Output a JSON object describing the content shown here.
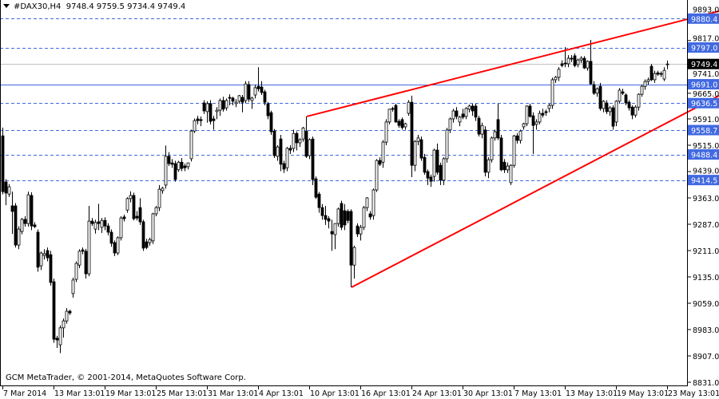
{
  "header": {
    "symbol": "#DAX30,H4",
    "ohlc_text": "9748.4 9759.5 9734.4 9749.4"
  },
  "footer": {
    "copyright": "GCM MetaTrader, © 2001-2014, MetaQuotes Software Corp."
  },
  "colors": {
    "bull_fill": "#ffffff",
    "bear_fill": "#000000",
    "candle_outline": "#000000",
    "level_line": "#4169e1",
    "level_label_bg": "#4169e1",
    "bid_line": "#c0c0c0",
    "bid_label_bg": "#000000",
    "trendline": "#ff0000"
  },
  "chart_data": {
    "type": "candlestick",
    "title": "#DAX30,H4",
    "ylim": [
      8821.8,
      9934.1
    ],
    "grid": false,
    "y_ticks": [
      "9893.0",
      "9817.0",
      "9741.0",
      "9665.0",
      "9591.0",
      "9515.0",
      "9439.0",
      "9363.0",
      "9287.0",
      "9211.0",
      "9135.0",
      "9059.0",
      "8983.0",
      "8907.0",
      "8831.0"
    ],
    "x_labels": [
      {
        "bar": 0,
        "label": "7 Mar 2014"
      },
      {
        "bar": 16,
        "label": "13 Mar 13:01"
      },
      {
        "bar": 32,
        "label": "19 Mar 13:01"
      },
      {
        "bar": 48,
        "label": "25 Mar 13:01"
      },
      {
        "bar": 64,
        "label": "31 Mar 13:01"
      },
      {
        "bar": 80,
        "label": "4 Apr 13:01"
      },
      {
        "bar": 96,
        "label": "10 Apr 13:01"
      },
      {
        "bar": 112,
        "label": "16 Apr 13:01"
      },
      {
        "bar": 128,
        "label": "24 Apr 13:01"
      },
      {
        "bar": 144,
        "label": "30 Apr 13:01"
      },
      {
        "bar": 160,
        "label": "7 May 13:01"
      },
      {
        "bar": 176,
        "label": "13 May 13:01"
      },
      {
        "bar": 192,
        "label": "19 May 13:01"
      },
      {
        "bar": 208,
        "label": "23 May 13:01"
      }
    ],
    "levels": [
      {
        "price": 9880.4,
        "label": "9880.4",
        "style": "dashed"
      },
      {
        "price": 9797.0,
        "label": "9797.0",
        "style": "dashed"
      },
      {
        "price": 9749.4,
        "label": "9749.4",
        "style": "bid"
      },
      {
        "price": 9691.0,
        "label": "9691.0",
        "style": "solid"
      },
      {
        "price": 9636.5,
        "label": "9636.5",
        "style": "dashed"
      },
      {
        "price": 9558.7,
        "label": "9558.7",
        "style": "dashed"
      },
      {
        "price": 9488.4,
        "label": "9488.4",
        "style": "dashed"
      },
      {
        "price": 9414.5,
        "label": "9414.5",
        "style": "dashed"
      }
    ],
    "trendlines": [
      {
        "start": {
          "bar": 95.25,
          "price": 9598
        },
        "end": {
          "bar": 224.25,
          "price": 9902
        }
      },
      {
        "start": {
          "bar": 109.25,
          "price": 9105
        },
        "end": {
          "bar": 224.25,
          "price": 9658
        }
      }
    ],
    "candles_ohlc": [
      [
        9542,
        9566,
        9373,
        9381
      ],
      [
        9409,
        9417,
        9342,
        9377
      ],
      [
        9374,
        9403,
        9366,
        9395
      ],
      [
        9340,
        9381,
        9259,
        9324
      ],
      [
        9340,
        9348,
        9220,
        9227
      ],
      [
        9227,
        9281,
        9215,
        9273
      ],
      [
        9266,
        9305,
        9258,
        9301
      ],
      [
        9301,
        9310,
        9280,
        9289
      ],
      [
        9289,
        9381,
        9280,
        9372
      ],
      [
        9370,
        9379,
        9270,
        9282
      ],
      [
        9285,
        9293,
        9276,
        9280
      ],
      [
        9264,
        9272,
        9150,
        9163
      ],
      [
        9167,
        9208,
        9155,
        9204
      ],
      [
        9197,
        9215,
        9185,
        9202
      ],
      [
        9211,
        9220,
        9180,
        9190
      ],
      [
        9199,
        9210,
        9110,
        9119
      ],
      [
        9121,
        9130,
        8945,
        8955
      ],
      [
        8958,
        8965,
        8930,
        8953
      ],
      [
        8939,
        8995,
        8915,
        8988
      ],
      [
        8988,
        9015,
        8960,
        9008
      ],
      [
        9008,
        9045,
        9000,
        9036
      ],
      [
        9036,
        9040,
        9025,
        9031
      ],
      [
        9087,
        9133,
        9075,
        9126
      ],
      [
        9128,
        9180,
        9120,
        9174
      ],
      [
        9169,
        9215,
        9160,
        9209
      ],
      [
        9213,
        9220,
        9200,
        9209
      ],
      [
        9209,
        9216,
        9130,
        9144
      ],
      [
        9144,
        9340,
        9137,
        9296
      ],
      [
        9296,
        9305,
        9282,
        9289
      ],
      [
        9273,
        9300,
        9260,
        9292
      ],
      [
        9294,
        9346,
        9270,
        9289
      ],
      [
        9278,
        9305,
        9262,
        9298
      ],
      [
        9298,
        9307,
        9270,
        9282
      ],
      [
        9282,
        9290,
        9255,
        9264
      ],
      [
        9264,
        9272,
        9222,
        9232
      ],
      [
        9234,
        9240,
        9195,
        9204
      ],
      [
        9204,
        9252,
        9198,
        9248
      ],
      [
        9248,
        9310,
        9240,
        9305
      ],
      [
        9308,
        9315,
        9295,
        9303
      ],
      [
        9328,
        9365,
        9320,
        9361
      ],
      [
        9361,
        9382,
        9350,
        9370
      ],
      [
        9370,
        9378,
        9298,
        9303
      ],
      [
        9310,
        9325,
        9298,
        9305
      ],
      [
        9335,
        9362,
        9285,
        9294
      ],
      [
        9294,
        9300,
        9210,
        9218
      ],
      [
        9236,
        9245,
        9215,
        9220
      ],
      [
        9234,
        9248,
        9225,
        9243
      ],
      [
        9239,
        9320,
        9230,
        9317
      ],
      [
        9317,
        9340,
        9310,
        9335
      ],
      [
        9335,
        9400,
        9325,
        9388
      ],
      [
        9384,
        9395,
        9375,
        9391
      ],
      [
        9400,
        9514,
        9390,
        9483
      ],
      [
        9483,
        9495,
        9455,
        9462
      ],
      [
        9464,
        9475,
        9450,
        9460
      ],
      [
        9462,
        9470,
        9410,
        9416
      ],
      [
        9444,
        9470,
        9438,
        9466
      ],
      [
        9466,
        9478,
        9440,
        9448
      ],
      [
        9455,
        9462,
        9440,
        9450
      ],
      [
        9453,
        9465,
        9445,
        9464
      ],
      [
        9476,
        9560,
        9468,
        9556
      ],
      [
        9556,
        9592,
        9550,
        9586
      ],
      [
        9591,
        9600,
        9575,
        9586
      ],
      [
        9589,
        9598,
        9570,
        9586
      ],
      [
        9637,
        9645,
        9605,
        9614
      ],
      [
        9612,
        9642,
        9580,
        9635
      ],
      [
        9635,
        9645,
        9575,
        9584
      ],
      [
        9591,
        9600,
        9560,
        9586
      ],
      [
        9612,
        9625,
        9590,
        9616
      ],
      [
        9616,
        9650,
        9600,
        9644
      ],
      [
        9644,
        9655,
        9612,
        9619
      ],
      [
        9623,
        9650,
        9615,
        9644
      ],
      [
        9653,
        9662,
        9630,
        9651
      ],
      [
        9651,
        9655,
        9630,
        9642
      ],
      [
        9635,
        9648,
        9625,
        9639
      ],
      [
        9642,
        9660,
        9635,
        9658
      ],
      [
        9653,
        9660,
        9610,
        9639
      ],
      [
        9644,
        9700,
        9636,
        9692
      ],
      [
        9690,
        9700,
        9640,
        9648
      ],
      [
        9644,
        9655,
        9620,
        9651
      ],
      [
        9660,
        9690,
        9650,
        9681
      ],
      [
        9685,
        9740,
        9670,
        9678
      ],
      [
        9683,
        9700,
        9660,
        9667
      ],
      [
        9669,
        9675,
        9630,
        9639
      ],
      [
        9635,
        9640,
        9590,
        9600
      ],
      [
        9609,
        9615,
        9545,
        9554
      ],
      [
        9556,
        9562,
        9478,
        9485
      ],
      [
        9483,
        9515,
        9470,
        9510
      ],
      [
        9533,
        9545,
        9440,
        9460
      ],
      [
        9462,
        9470,
        9435,
        9446
      ],
      [
        9450,
        9510,
        9440,
        9506
      ],
      [
        9506,
        9515,
        9490,
        9501
      ],
      [
        9506,
        9560,
        9495,
        9549
      ],
      [
        9549,
        9555,
        9500,
        9522
      ],
      [
        9522,
        9535,
        9510,
        9531
      ],
      [
        9533,
        9568,
        9525,
        9565
      ],
      [
        9556,
        9598,
        9478,
        9483
      ],
      [
        9485,
        9535,
        9475,
        9531
      ],
      [
        9533,
        9540,
        9400,
        9416
      ],
      [
        9418,
        9425,
        9360,
        9365
      ],
      [
        9374,
        9380,
        9320,
        9335
      ],
      [
        9335,
        9345,
        9300,
        9312
      ],
      [
        9312,
        9340,
        9285,
        9301
      ],
      [
        9303,
        9310,
        9275,
        9296
      ],
      [
        9266,
        9300,
        9210,
        9259
      ],
      [
        9257,
        9290,
        9215,
        9289
      ],
      [
        9289,
        9335,
        9280,
        9331
      ],
      [
        9347,
        9355,
        9270,
        9278
      ],
      [
        9326,
        9345,
        9270,
        9285
      ],
      [
        9324,
        9330,
        9290,
        9298
      ],
      [
        9324,
        9330,
        9105,
        9169
      ],
      [
        9169,
        9225,
        9130,
        9220
      ],
      [
        9282,
        9290,
        9250,
        9259
      ],
      [
        9259,
        9285,
        9240,
        9278
      ],
      [
        9278,
        9340,
        9270,
        9335
      ],
      [
        9335,
        9365,
        9325,
        9363
      ],
      [
        9317,
        9325,
        9300,
        9308
      ],
      [
        9312,
        9390,
        9300,
        9386
      ],
      [
        9386,
        9475,
        9380,
        9471
      ],
      [
        9471,
        9480,
        9455,
        9460
      ],
      [
        9466,
        9530,
        9450,
        9524
      ],
      [
        9524,
        9590,
        9515,
        9582
      ],
      [
        9582,
        9620,
        9575,
        9619
      ],
      [
        9621,
        9626,
        9612,
        9619
      ],
      [
        9630,
        9635,
        9580,
        9582
      ],
      [
        9584,
        9590,
        9565,
        9572
      ],
      [
        9589,
        9595,
        9560,
        9566
      ],
      [
        9568,
        9580,
        9560,
        9577
      ],
      [
        9607,
        9645,
        9600,
        9639
      ],
      [
        9639,
        9658,
        9423,
        9457
      ],
      [
        9457,
        9530,
        9440,
        9526
      ],
      [
        9526,
        9545,
        9515,
        9536
      ],
      [
        9531,
        9540,
        9470,
        9478
      ],
      [
        9480,
        9490,
        9430,
        9437
      ],
      [
        9439,
        9445,
        9400,
        9420
      ],
      [
        9423,
        9430,
        9395,
        9411
      ],
      [
        9425,
        9505,
        9410,
        9501
      ],
      [
        9501,
        9520,
        9430,
        9437
      ],
      [
        9457,
        9465,
        9400,
        9414
      ],
      [
        9414,
        9480,
        9400,
        9476
      ],
      [
        9476,
        9565,
        9465,
        9559
      ],
      [
        9559,
        9595,
        9550,
        9591
      ],
      [
        9591,
        9620,
        9580,
        9614
      ],
      [
        9614,
        9625,
        9590,
        9598
      ],
      [
        9582,
        9600,
        9570,
        9596
      ],
      [
        9605,
        9620,
        9590,
        9596
      ],
      [
        9598,
        9625,
        9590,
        9621
      ],
      [
        9619,
        9632,
        9610,
        9628
      ],
      [
        9628,
        9635,
        9600,
        9614
      ],
      [
        9628,
        9635,
        9585,
        9596
      ],
      [
        9593,
        9600,
        9540,
        9547
      ],
      [
        9547,
        9580,
        9535,
        9572
      ],
      [
        9559,
        9570,
        9425,
        9437
      ],
      [
        9437,
        9480,
        9420,
        9473
      ],
      [
        9473,
        9540,
        9465,
        9536
      ],
      [
        9536,
        9560,
        9528,
        9554
      ],
      [
        9589,
        9635,
        9530,
        9536
      ],
      [
        9536,
        9545,
        9440,
        9444
      ],
      [
        9466,
        9475,
        9435,
        9444
      ],
      [
        9444,
        9465,
        9435,
        9455
      ],
      [
        9407,
        9460,
        9400,
        9457
      ],
      [
        9457,
        9545,
        9450,
        9542
      ],
      [
        9542,
        9550,
        9520,
        9529
      ],
      [
        9529,
        9560,
        9520,
        9556
      ],
      [
        9568,
        9580,
        9560,
        9577
      ],
      [
        9577,
        9630,
        9570,
        9628
      ],
      [
        9628,
        9635,
        9595,
        9598
      ],
      [
        9600,
        9610,
        9490,
        9572
      ],
      [
        9575,
        9590,
        9560,
        9582
      ],
      [
        9582,
        9615,
        9575,
        9607
      ],
      [
        9607,
        9620,
        9595,
        9602
      ],
      [
        9612,
        9618,
        9600,
        9609
      ],
      [
        9621,
        9635,
        9610,
        9630
      ],
      [
        9630,
        9710,
        9620,
        9704
      ],
      [
        9704,
        9715,
        9695,
        9711
      ],
      [
        9711,
        9740,
        9700,
        9734
      ],
      [
        9750,
        9760,
        9740,
        9745
      ],
      [
        9752,
        9798,
        9740,
        9750
      ],
      [
        9750,
        9775,
        9740,
        9766
      ],
      [
        9766,
        9775,
        9755,
        9764
      ],
      [
        9773,
        9780,
        9740,
        9745
      ],
      [
        9748,
        9765,
        9740,
        9761
      ],
      [
        9761,
        9772,
        9752,
        9766
      ],
      [
        9766,
        9772,
        9735,
        9738
      ],
      [
        9738,
        9760,
        9730,
        9757
      ],
      [
        9757,
        9819,
        9690,
        9692
      ],
      [
        9690,
        9700,
        9660,
        9665
      ],
      [
        9665,
        9682,
        9655,
        9678
      ],
      [
        9685,
        9695,
        9615,
        9621
      ],
      [
        9621,
        9645,
        9610,
        9642
      ],
      [
        9637,
        9645,
        9605,
        9612
      ],
      [
        9612,
        9628,
        9600,
        9623
      ],
      [
        9623,
        9630,
        9560,
        9570
      ],
      [
        9582,
        9645,
        9570,
        9642
      ],
      [
        9642,
        9680,
        9635,
        9674
      ],
      [
        9669,
        9678,
        9660,
        9665
      ],
      [
        9660,
        9665,
        9630,
        9637
      ],
      [
        9639,
        9645,
        9615,
        9623
      ],
      [
        9625,
        9630,
        9590,
        9602
      ],
      [
        9602,
        9630,
        9595,
        9625
      ],
      [
        9625,
        9665,
        9615,
        9662
      ],
      [
        9662,
        9690,
        9655,
        9685
      ],
      [
        9685,
        9705,
        9675,
        9699
      ],
      [
        9699,
        9710,
        9690,
        9704
      ],
      [
        9743,
        9750,
        9700,
        9704
      ],
      [
        9704,
        9730,
        9695,
        9722
      ],
      [
        9724,
        9730,
        9715,
        9720
      ],
      [
        9722,
        9728,
        9712,
        9720
      ],
      [
        9706,
        9740,
        9700,
        9731
      ],
      [
        9748.4,
        9759.5,
        9734.4,
        9749.4
      ]
    ]
  }
}
